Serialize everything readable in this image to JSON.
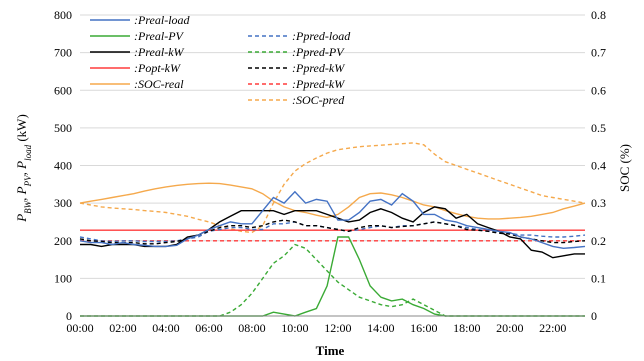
{
  "chart_data": {
    "type": "line",
    "xlabel": "Time",
    "ylabel": "P_BW, P_PV, P_load (kW)",
    "ylabel_parts": [
      "P",
      "BW",
      ", P",
      "PV",
      ", P",
      "load",
      " (kW)"
    ],
    "ylabel_right": "SOC (%)",
    "ylim": [
      0,
      800
    ],
    "ylim_right": [
      0,
      0.8
    ],
    "yticks": [
      "0",
      "100",
      "200",
      "300",
      "400",
      "500",
      "600",
      "700",
      "800"
    ],
    "yticks_right": [
      "0",
      "0.1",
      "0.2",
      "0.3",
      "0.4",
      "0.5",
      "0.6",
      "0.7",
      "0.8"
    ],
    "xlim": [
      0,
      23.5
    ],
    "xtick_values": [
      0,
      2,
      4,
      6,
      8,
      10,
      12,
      14,
      16,
      18,
      20,
      22
    ],
    "xtick_labels": [
      "00:00",
      "02:00",
      "04:00",
      "06:00",
      "08:00",
      "10:00",
      "12:00",
      "14:00",
      "16:00",
      "18:00",
      "20:00",
      "22:00"
    ],
    "grid": "horizontal",
    "legend_position": "top-left",
    "x": [
      0,
      0.5,
      1,
      1.5,
      2,
      2.5,
      3,
      3.5,
      4,
      4.5,
      5,
      5.5,
      6,
      6.5,
      7,
      7.5,
      8,
      8.5,
      9,
      9.5,
      10,
      10.5,
      11,
      11.5,
      12,
      12.5,
      13,
      13.5,
      14,
      14.5,
      15,
      15.5,
      16,
      16.5,
      17,
      17.5,
      18,
      18.5,
      19,
      19.5,
      20,
      20.5,
      21,
      21.5,
      22,
      22.5,
      23,
      23.5
    ],
    "series": [
      {
        "name": ":Preal-load",
        "axis": "left",
        "style": "solid",
        "color": "#4472c4",
        "values": [
          200,
          195,
          195,
          190,
          195,
          190,
          188,
          185,
          185,
          188,
          205,
          215,
          230,
          240,
          250,
          245,
          245,
          280,
          315,
          300,
          330,
          300,
          310,
          305,
          255,
          255,
          275,
          305,
          310,
          295,
          325,
          305,
          270,
          270,
          255,
          250,
          240,
          235,
          230,
          225,
          222,
          210,
          205,
          195,
          185,
          180,
          182,
          185
        ]
      },
      {
        "name": ":Preal-PV",
        "axis": "left",
        "style": "solid",
        "color": "#3aaa35",
        "values": [
          0,
          0,
          0,
          0,
          0,
          0,
          0,
          0,
          0,
          0,
          0,
          0,
          0,
          0,
          0,
          0,
          0,
          0,
          10,
          5,
          0,
          10,
          20,
          80,
          210,
          210,
          150,
          80,
          50,
          40,
          45,
          30,
          20,
          5,
          0,
          0,
          0,
          0,
          0,
          0,
          0,
          0,
          0,
          0,
          0,
          0,
          0,
          0
        ]
      },
      {
        "name": ":Preal-kW",
        "axis": "left",
        "style": "solid",
        "color": "#000000",
        "values": [
          190,
          190,
          185,
          190,
          190,
          190,
          185,
          185,
          185,
          190,
          210,
          215,
          230,
          250,
          265,
          280,
          280,
          280,
          280,
          270,
          280,
          280,
          280,
          270,
          260,
          250,
          255,
          275,
          285,
          275,
          260,
          250,
          275,
          290,
          285,
          260,
          270,
          245,
          235,
          225,
          210,
          205,
          175,
          170,
          155,
          160,
          165,
          165
        ]
      },
      {
        "name": ":Popt-kW",
        "axis": "left",
        "style": "solid",
        "color": "#ff3b3b",
        "values": [
          228,
          228,
          228,
          228,
          228,
          228,
          228,
          228,
          228,
          228,
          228,
          228,
          228,
          228,
          228,
          228,
          228,
          228,
          228,
          228,
          228,
          228,
          228,
          228,
          228,
          228,
          228,
          228,
          228,
          228,
          228,
          228,
          228,
          228,
          228,
          228,
          228,
          228,
          228,
          228,
          228,
          228,
          228,
          228,
          228,
          228,
          228,
          228
        ]
      },
      {
        "name": ":SOC-real",
        "axis": "right",
        "style": "solid",
        "color": "#f5a94c",
        "values": [
          0.3,
          0.305,
          0.31,
          0.315,
          0.32,
          0.325,
          0.332,
          0.338,
          0.343,
          0.347,
          0.35,
          0.352,
          0.353,
          0.352,
          0.348,
          0.343,
          0.338,
          0.325,
          0.305,
          0.29,
          0.28,
          0.275,
          0.268,
          0.262,
          0.27,
          0.29,
          0.315,
          0.325,
          0.327,
          0.322,
          0.315,
          0.305,
          0.295,
          0.29,
          0.28,
          0.272,
          0.265,
          0.26,
          0.258,
          0.258,
          0.26,
          0.262,
          0.265,
          0.27,
          0.275,
          0.285,
          0.292,
          0.3
        ]
      },
      {
        "name": ":Ppred-load",
        "axis": "left",
        "style": "dashed",
        "color": "#4472c4",
        "values": [
          210,
          205,
          200,
          198,
          200,
          200,
          198,
          198,
          198,
          200,
          205,
          210,
          225,
          230,
          235,
          235,
          230,
          230,
          245,
          245,
          250,
          240,
          240,
          235,
          230,
          225,
          230,
          235,
          240,
          235,
          240,
          240,
          245,
          250,
          245,
          240,
          235,
          230,
          225,
          222,
          220,
          215,
          215,
          212,
          210,
          210,
          212,
          215
        ]
      },
      {
        "name": ":Ppred-PV",
        "axis": "left",
        "style": "dashed",
        "color": "#3aaa35",
        "values": [
          0,
          0,
          0,
          0,
          0,
          0,
          0,
          0,
          0,
          0,
          0,
          0,
          0,
          0,
          10,
          30,
          60,
          100,
          140,
          160,
          190,
          180,
          150,
          120,
          90,
          70,
          50,
          40,
          30,
          25,
          30,
          45,
          30,
          15,
          0,
          0,
          0,
          0,
          0,
          0,
          0,
          0,
          0,
          0,
          0,
          0,
          0,
          0
        ]
      },
      {
        "name": ":Ppred-kW",
        "axis": "left",
        "style": "dashed",
        "color": "#000000",
        "values": [
          205,
          200,
          198,
          195,
          195,
          195,
          192,
          192,
          195,
          198,
          205,
          215,
          225,
          235,
          240,
          240,
          235,
          240,
          250,
          255,
          250,
          240,
          240,
          235,
          230,
          225,
          235,
          240,
          240,
          235,
          238,
          240,
          245,
          250,
          245,
          240,
          230,
          228,
          225,
          220,
          218,
          210,
          205,
          200,
          195,
          195,
          198,
          200
        ]
      },
      {
        "name": ":Ppred-kW",
        "axis": "left",
        "style": "dashed",
        "color": "#ff3b3b",
        "values": [
          200,
          200,
          200,
          200,
          200,
          200,
          200,
          200,
          200,
          200,
          200,
          200,
          200,
          200,
          200,
          200,
          200,
          200,
          200,
          200,
          200,
          200,
          200,
          200,
          200,
          200,
          200,
          200,
          200,
          200,
          200,
          200,
          200,
          200,
          200,
          200,
          200,
          200,
          200,
          200,
          200,
          200,
          200,
          200,
          200,
          200,
          200,
          200
        ]
      },
      {
        "name": ":SOC-pred",
        "axis": "right",
        "style": "dashed",
        "color": "#f5a94c",
        "values": [
          0.3,
          0.295,
          0.29,
          0.287,
          0.285,
          0.283,
          0.28,
          0.278,
          0.275,
          0.27,
          0.265,
          0.257,
          0.25,
          0.24,
          0.232,
          0.225,
          0.222,
          0.24,
          0.3,
          0.35,
          0.385,
          0.405,
          0.42,
          0.433,
          0.442,
          0.446,
          0.45,
          0.452,
          0.454,
          0.456,
          0.458,
          0.46,
          0.455,
          0.43,
          0.41,
          0.4,
          0.39,
          0.38,
          0.37,
          0.36,
          0.35,
          0.34,
          0.33,
          0.32,
          0.315,
          0.31,
          0.305,
          0.3
        ]
      }
    ]
  }
}
